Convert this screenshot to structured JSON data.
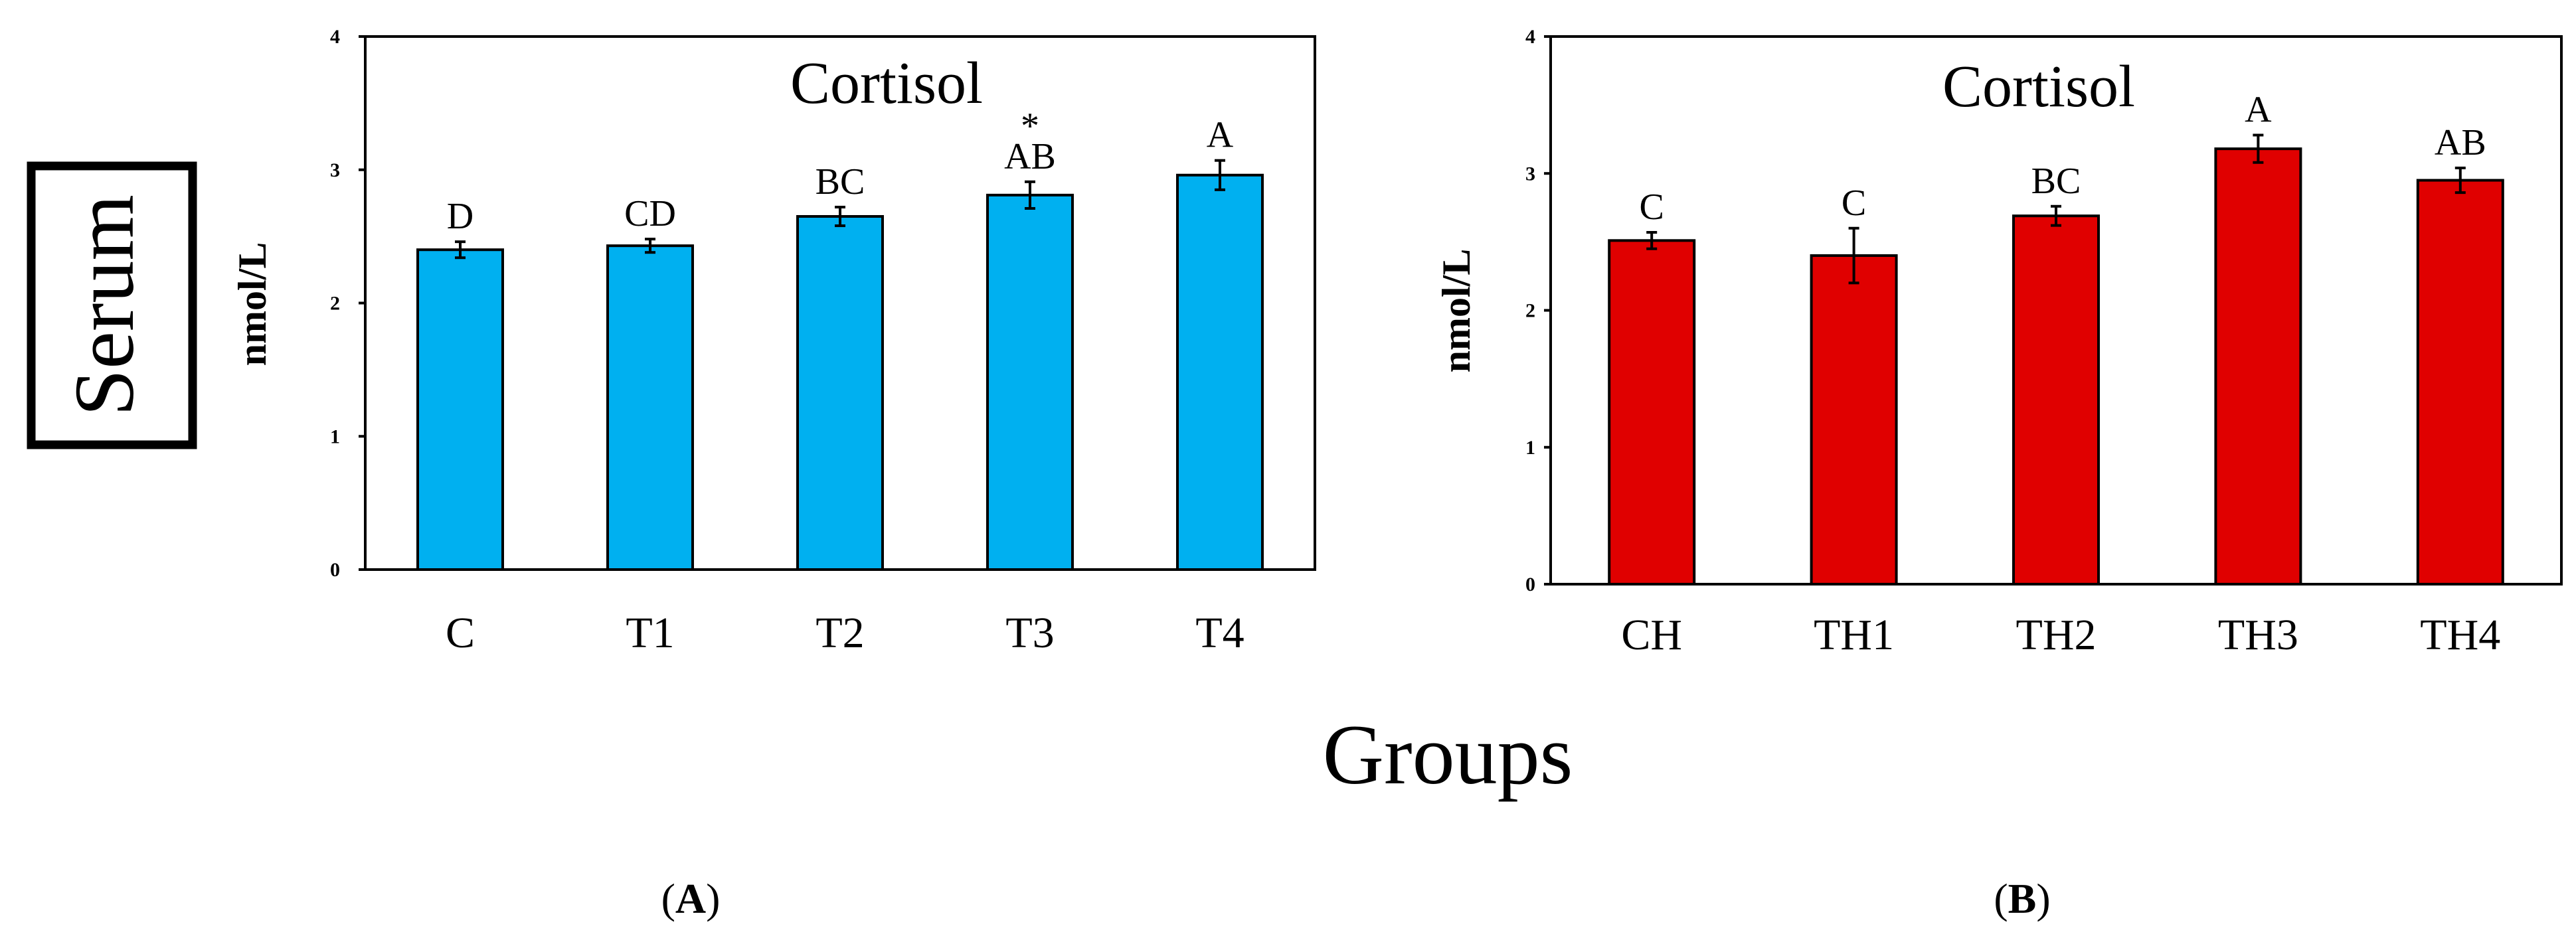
{
  "figure": {
    "serum_label": "Serum",
    "groups_label": "Groups",
    "panel_labels": [
      {
        "open": "(",
        "letter": "A",
        "close": ")"
      },
      {
        "open": "(",
        "letter": "B",
        "close": ")"
      }
    ]
  },
  "chart_data": [
    {
      "type": "bar",
      "title": "Cortisol",
      "xlabel": "",
      "ylabel": "nmol/L",
      "ylim": [
        0,
        4
      ],
      "yticks": [
        "0",
        "1",
        "2",
        "3",
        "4"
      ],
      "categories": [
        "C",
        "T1",
        "T2",
        "T3",
        "T4"
      ],
      "values": [
        2.4,
        2.43,
        2.65,
        2.81,
        2.96
      ],
      "errors": [
        0.06,
        0.05,
        0.07,
        0.1,
        0.11
      ],
      "letters": [
        "D",
        "CD",
        "BC",
        "AB",
        "A"
      ],
      "marks": [
        "",
        "",
        "",
        "*",
        ""
      ],
      "color": "#00b0f0"
    },
    {
      "type": "bar",
      "title": "Cortisol",
      "xlabel": "",
      "ylabel": "nmol/L",
      "ylim": [
        0,
        4
      ],
      "yticks": [
        "0",
        "1",
        "2",
        "3",
        "4"
      ],
      "categories": [
        "CH",
        "TH1",
        "TH2",
        "TH3",
        "TH4"
      ],
      "values": [
        2.51,
        2.4,
        2.69,
        3.18,
        2.95
      ],
      "errors": [
        0.06,
        0.2,
        0.07,
        0.1,
        0.09
      ],
      "letters": [
        "C",
        "C",
        "BC",
        "A",
        "AB"
      ],
      "marks": [
        "",
        "",
        "",
        "",
        ""
      ],
      "color": "#e00000"
    }
  ]
}
